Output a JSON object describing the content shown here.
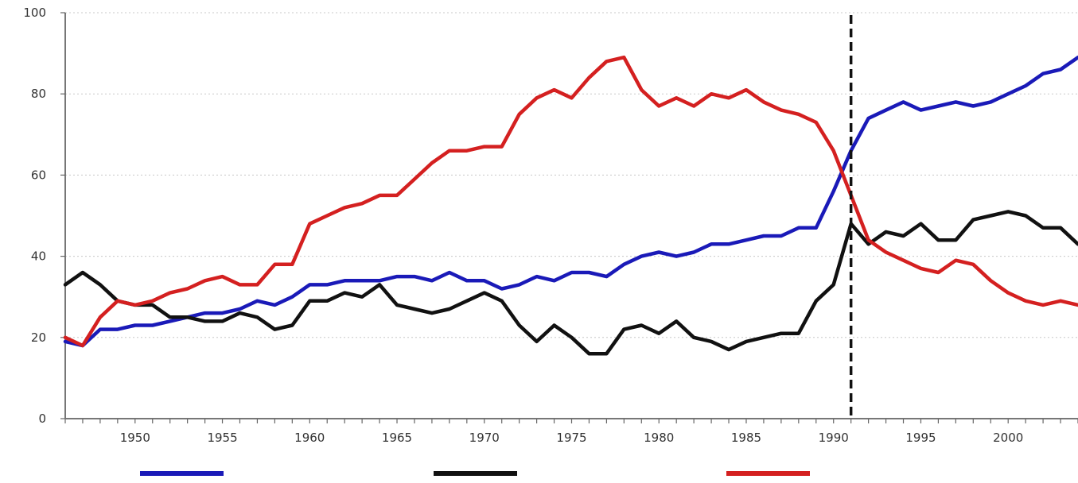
{
  "chart_data": {
    "type": "line",
    "title": "",
    "xlabel": "",
    "ylabel": "",
    "xlim": [
      1946,
      2004
    ],
    "ylim": [
      0,
      100
    ],
    "y_ticks": [
      0,
      20,
      40,
      60,
      80,
      100
    ],
    "x_tick_labels": [
      1950,
      1955,
      1960,
      1965,
      1970,
      1975,
      1980,
      1985,
      1990,
      1995,
      2000
    ],
    "grid": "horizontal",
    "legend": "bottom",
    "vertical_marker_x": 1991,
    "x": [
      1946,
      1947,
      1948,
      1949,
      1950,
      1951,
      1952,
      1953,
      1954,
      1955,
      1956,
      1957,
      1958,
      1959,
      1960,
      1961,
      1962,
      1963,
      1964,
      1965,
      1966,
      1967,
      1968,
      1969,
      1970,
      1971,
      1972,
      1973,
      1974,
      1975,
      1976,
      1977,
      1978,
      1979,
      1980,
      1981,
      1982,
      1983,
      1984,
      1985,
      1986,
      1987,
      1988,
      1989,
      1990,
      1991,
      1992,
      1993,
      1994,
      1995,
      1996,
      1997,
      1998,
      1999,
      2000,
      2001,
      2002,
      2003,
      2004
    ],
    "series": [
      {
        "color": "#1a1ab8",
        "values": [
          19,
          18,
          22,
          22,
          23,
          23,
          24,
          25,
          26,
          26,
          27,
          29,
          28,
          30,
          33,
          33,
          34,
          34,
          34,
          35,
          35,
          34,
          36,
          34,
          34,
          32,
          33,
          35,
          34,
          36,
          36,
          35,
          38,
          40,
          41,
          40,
          41,
          43,
          43,
          44,
          45,
          45,
          47,
          47,
          56,
          66,
          74,
          76,
          78,
          76,
          77,
          78,
          77,
          78,
          80,
          82,
          85,
          86,
          89
        ]
      },
      {
        "color": "#111111",
        "values": [
          33,
          36,
          33,
          29,
          28,
          28,
          25,
          25,
          24,
          24,
          26,
          25,
          22,
          23,
          29,
          29,
          31,
          30,
          33,
          28,
          27,
          26,
          27,
          29,
          31,
          29,
          23,
          19,
          23,
          20,
          16,
          16,
          22,
          23,
          21,
          24,
          20,
          19,
          17,
          19,
          20,
          21,
          21,
          29,
          33,
          48,
          43,
          46,
          45,
          48,
          44,
          44,
          49,
          50,
          51,
          50,
          47,
          47,
          43
        ]
      },
      {
        "color": "#d42020",
        "values": [
          20,
          18,
          25,
          29,
          28,
          29,
          31,
          32,
          34,
          35,
          33,
          33,
          38,
          38,
          48,
          50,
          52,
          53,
          55,
          55,
          59,
          63,
          66,
          66,
          67,
          67,
          75,
          79,
          81,
          79,
          84,
          88,
          89,
          81,
          77,
          79,
          77,
          80,
          79,
          81,
          78,
          76,
          75,
          73,
          66,
          55,
          44,
          41,
          39,
          37,
          36,
          39,
          38,
          34,
          31,
          29,
          28,
          29,
          28
        ]
      }
    ]
  }
}
